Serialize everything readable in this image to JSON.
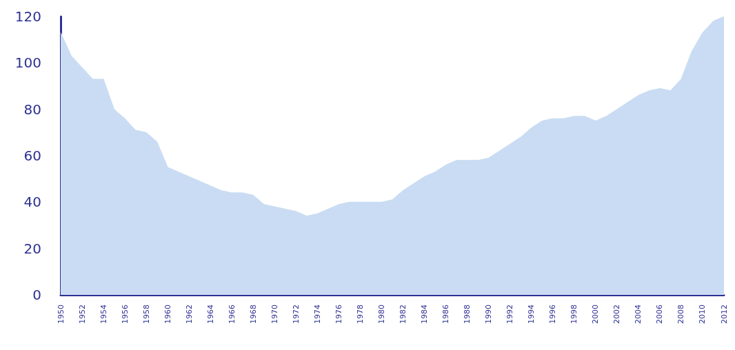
{
  "chart_data": {
    "type": "area",
    "x": [
      1950,
      1951,
      1952,
      1953,
      1954,
      1955,
      1956,
      1957,
      1958,
      1959,
      1960,
      1961,
      1962,
      1963,
      1964,
      1965,
      1966,
      1967,
      1968,
      1969,
      1970,
      1971,
      1972,
      1973,
      1974,
      1975,
      1976,
      1977,
      1978,
      1979,
      1980,
      1981,
      1982,
      1983,
      1984,
      1985,
      1986,
      1987,
      1988,
      1989,
      1990,
      1991,
      1992,
      1993,
      1994,
      1995,
      1996,
      1997,
      1998,
      1999,
      2000,
      2001,
      2002,
      2003,
      2004,
      2005,
      2006,
      2007,
      2008,
      2009,
      2010,
      2011,
      2012
    ],
    "series": [
      {
        "color": "#c9dcf3",
        "values": [
          113,
          103,
          98,
          93,
          93,
          80,
          76,
          71,
          70,
          66,
          55,
          53,
          51,
          49,
          47,
          45,
          44,
          44,
          43,
          39,
          38,
          37,
          36,
          34,
          35,
          37,
          39,
          40,
          40,
          40,
          40,
          41,
          45,
          48,
          51,
          53,
          56,
          58,
          58,
          58,
          59,
          62,
          65,
          68,
          72,
          75,
          76,
          76,
          77,
          77,
          75,
          77,
          80,
          83,
          86,
          88,
          89,
          88,
          93,
          105,
          113,
          118,
          120
        ]
      }
    ],
    "xlim": [
      1950,
      2012
    ],
    "xticks": [
      1950,
      1952,
      1954,
      1956,
      1958,
      1960,
      1962,
      1964,
      1966,
      1968,
      1970,
      1972,
      1974,
      1976,
      1978,
      1980,
      1982,
      1984,
      1986,
      1988,
      1990,
      1992,
      1994,
      1996,
      1998,
      2000,
      2002,
      2004,
      2006,
      2008,
      2010,
      2012
    ],
    "ylim": [
      0,
      120
    ],
    "yticks": [
      0,
      20,
      40,
      60,
      80,
      100,
      120
    ],
    "grid": false,
    "marker": "none"
  }
}
